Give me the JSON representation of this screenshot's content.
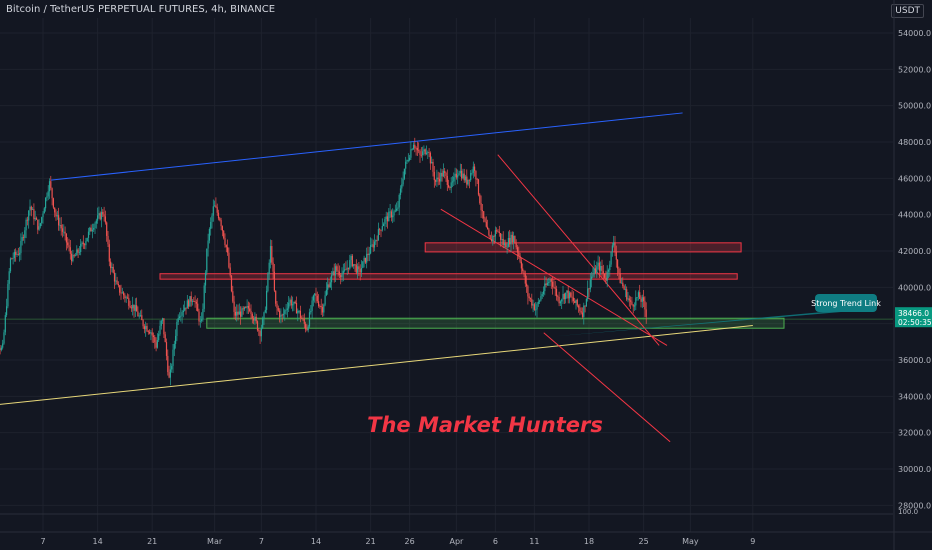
{
  "header": {
    "title": "Bitcoin / TetherUS PERPETUAL FUTURES, 4h, BINANCE",
    "currency": "USDT"
  },
  "annotation_text": "The Market Hunters",
  "callout_text": "Strong Trend Link",
  "price_tag": {
    "price": "38466.0",
    "countdown": "02:50:35"
  },
  "volume_axis_label": "100.0",
  "colors": {
    "background": "#131722",
    "up_candle": "#26a69a",
    "down_candle": "#ef5350",
    "resistance_line": "#2962ff",
    "support_line": "#e8d87a",
    "channel": "#f23645",
    "red_zone": "#f23645",
    "green_zone": "#4caf50",
    "callout": "#0f7c82",
    "text_accent": "#f23645"
  },
  "chart_data": {
    "type": "candlestick",
    "timeframe": "4h",
    "ylim": [
      27500,
      55000
    ],
    "y_ticks": [
      28000,
      30000,
      32000,
      34000,
      36000,
      38000,
      40000,
      42000,
      44000,
      46000,
      48000,
      50000,
      52000,
      54000
    ],
    "x_ticks": [
      {
        "label": "7",
        "day": 7
      },
      {
        "label": "14",
        "day": 14
      },
      {
        "label": "21",
        "day": 21
      },
      {
        "label": "Mar",
        "day": 29
      },
      {
        "label": "7",
        "day": 35
      },
      {
        "label": "14",
        "day": 42
      },
      {
        "label": "21",
        "day": 49
      },
      {
        "label": "26",
        "day": 54
      },
      {
        "label": "Apr",
        "day": 60
      },
      {
        "label": "6",
        "day": 65
      },
      {
        "label": "11",
        "day": 70
      },
      {
        "label": "18",
        "day": 77
      },
      {
        "label": "25",
        "day": 84
      },
      {
        "label": "May",
        "day": 90
      },
      {
        "label": "9",
        "day": 98
      }
    ],
    "price_path": [
      [
        0,
        39000
      ],
      [
        0.8,
        37200
      ],
      [
        1.8,
        36500
      ],
      [
        2.8,
        41500
      ],
      [
        4,
        42000
      ],
      [
        5.3,
        44500
      ],
      [
        6.5,
        43200
      ],
      [
        7.8,
        45800
      ],
      [
        8.6,
        44000
      ],
      [
        9.6,
        43000
      ],
      [
        10.8,
        41500
      ],
      [
        12.3,
        42500
      ],
      [
        13.5,
        43500
      ],
      [
        14.8,
        44200
      ],
      [
        15.5,
        41500
      ],
      [
        16.5,
        40000
      ],
      [
        17.5,
        39500
      ],
      [
        18.8,
        38800
      ],
      [
        19.8,
        38000
      ],
      [
        20.8,
        37600
      ],
      [
        21.5,
        36800
      ],
      [
        22.3,
        38300
      ],
      [
        23.2,
        34800
      ],
      [
        24.3,
        38500
      ],
      [
        25.3,
        39000
      ],
      [
        26.3,
        39500
      ],
      [
        27.3,
        37800
      ],
      [
        28.1,
        42500
      ],
      [
        28.9,
        44500
      ],
      [
        29.7,
        43800
      ],
      [
        30.6,
        42000
      ],
      [
        31.5,
        38500
      ],
      [
        32.5,
        38600
      ],
      [
        33.5,
        38900
      ],
      [
        34.8,
        37500
      ],
      [
        35.4,
        38500
      ],
      [
        36.2,
        42300
      ],
      [
        36.8,
        39000
      ],
      [
        37.6,
        38300
      ],
      [
        38.6,
        39300
      ],
      [
        39.7,
        38700
      ],
      [
        40.8,
        37700
      ],
      [
        41.8,
        39600
      ],
      [
        42.8,
        38800
      ],
      [
        43.5,
        40100
      ],
      [
        44.5,
        41000
      ],
      [
        45.5,
        40700
      ],
      [
        46.5,
        41500
      ],
      [
        47.5,
        40800
      ],
      [
        48.6,
        41800
      ],
      [
        49.5,
        42500
      ],
      [
        50.5,
        43500
      ],
      [
        51.5,
        44000
      ],
      [
        52.4,
        44200
      ],
      [
        53.3,
        46500
      ],
      [
        54.5,
        48000
      ],
      [
        55.3,
        47200
      ],
      [
        56.3,
        47700
      ],
      [
        57.3,
        45800
      ],
      [
        58.3,
        46300
      ],
      [
        59.3,
        45500
      ],
      [
        60.3,
        46500
      ],
      [
        61.3,
        45800
      ],
      [
        62.3,
        46700
      ],
      [
        63.3,
        44000
      ],
      [
        64.3,
        42500
      ],
      [
        65.2,
        43200
      ],
      [
        66.1,
        42300
      ],
      [
        67.3,
        42800
      ],
      [
        68.2,
        41500
      ],
      [
        69.2,
        39500
      ],
      [
        70.2,
        38800
      ],
      [
        71.1,
        39800
      ],
      [
        72.1,
        40500
      ],
      [
        73.1,
        39300
      ],
      [
        74.1,
        39700
      ],
      [
        75.1,
        39200
      ],
      [
        76.2,
        38600
      ],
      [
        77.2,
        40500
      ],
      [
        78.2,
        41200
      ],
      [
        79.2,
        40500
      ],
      [
        80.2,
        42600
      ],
      [
        80.8,
        40600
      ],
      [
        81.6,
        39800
      ],
      [
        82.4,
        39000
      ],
      [
        83.3,
        39500
      ],
      [
        83.9,
        39200
      ],
      [
        84.4,
        38466
      ]
    ],
    "resistance_line": {
      "from": [
        8,
        45900
      ],
      "to": [
        89,
        49600
      ]
    },
    "support_line": {
      "from": [
        -2,
        33400
      ],
      "to": [
        98,
        37900
      ]
    },
    "channel_lines": [
      {
        "from": [
          58,
          44300
        ],
        "to": [
          87,
          36800
        ]
      },
      {
        "from": [
          65.3,
          47300
        ],
        "to": [
          86,
          36800
        ]
      },
      {
        "from": [
          71.2,
          37500
        ],
        "to": [
          87.4,
          31500
        ]
      }
    ],
    "zones": [
      {
        "type": "resistance",
        "x1": 56,
        "x2": 96.5,
        "y1": 41950,
        "y2": 42450
      },
      {
        "type": "resistance",
        "x1": 22,
        "x2": 96,
        "y1": 40450,
        "y2": 40750
      },
      {
        "type": "support",
        "x1": 28,
        "x2": 102,
        "y1": 37750,
        "y2": 38300
      }
    ],
    "horizontal_line": 38250,
    "price_label_level": 38466
  }
}
